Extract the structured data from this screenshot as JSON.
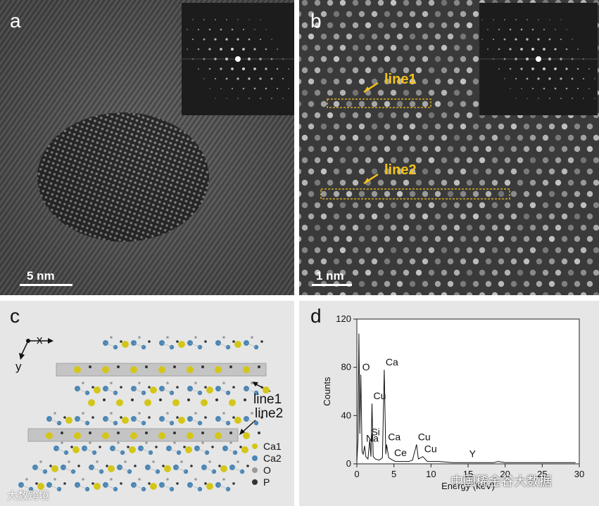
{
  "panels": {
    "a": {
      "label": "a",
      "scale_bar": "5 nm"
    },
    "b": {
      "label": "b",
      "scale_bar": "1 nm",
      "line1": "line1",
      "line2": "line2"
    },
    "c": {
      "label": "c",
      "axis_x": "x",
      "axis_y": "y",
      "line1": "line1",
      "line2": "line2",
      "legend": [
        {
          "label": "Ca1",
          "color": "#d4c619"
        },
        {
          "label": "Ca2",
          "color": "#4a86b5"
        },
        {
          "label": "O",
          "color": "#9a9a9a"
        },
        {
          "label": "P",
          "color": "#333333"
        }
      ]
    },
    "d": {
      "label": "d"
    }
  },
  "chart_data": {
    "type": "line",
    "title": "",
    "xlabel": "Energy (keV)",
    "ylabel": "Counts",
    "xlim": [
      0,
      30
    ],
    "ylim": [
      0,
      120
    ],
    "xticks": [
      0,
      5,
      10,
      15,
      20,
      25,
      30
    ],
    "yticks": [
      0,
      40,
      80,
      120
    ],
    "series": [
      {
        "x": [
          0,
          0.15,
          0.28,
          0.4,
          0.53,
          0.7,
          0.85,
          1.04,
          1.2,
          1.5,
          1.74,
          1.9,
          2.04,
          2.2,
          2.5,
          3.0,
          3.45,
          3.69,
          3.9,
          4.01,
          4.3,
          4.84,
          5.2,
          6.0,
          7.0,
          7.5,
          8.05,
          8.3,
          8.9,
          9.5,
          11,
          13,
          15,
          17,
          18.5,
          19,
          20,
          22,
          25,
          27,
          29.5
        ],
        "y": [
          2,
          20,
          108,
          25,
          74,
          10,
          8,
          15,
          6,
          4,
          20,
          6,
          50,
          6,
          4,
          3,
          5,
          78,
          8,
          16,
          5,
          3,
          2,
          2,
          2,
          3,
          16,
          4,
          6,
          2,
          2,
          1,
          1,
          1,
          1,
          2,
          1,
          1,
          1,
          1,
          1
        ]
      }
    ],
    "annotations": [
      {
        "text": "O",
        "x": 0.53,
        "y": 74
      },
      {
        "text": "Ca",
        "x": 3.69,
        "y": 78
      },
      {
        "text": "Cu",
        "x": 2.04,
        "y": 50
      },
      {
        "text": "Si",
        "x": 1.74,
        "y": 20
      },
      {
        "text": "Na",
        "x": 1.04,
        "y": 15
      },
      {
        "text": "Ca",
        "x": 4.01,
        "y": 16
      },
      {
        "text": "Ce",
        "x": 4.84,
        "y": 3
      },
      {
        "text": "Cu",
        "x": 8.05,
        "y": 16
      },
      {
        "text": "Cu",
        "x": 8.9,
        "y": 6
      },
      {
        "text": "Y",
        "x": 14.96,
        "y": 2
      }
    ]
  },
  "watermarks": {
    "left": "大数跨境",
    "right": "中国稀金谷大数据"
  }
}
